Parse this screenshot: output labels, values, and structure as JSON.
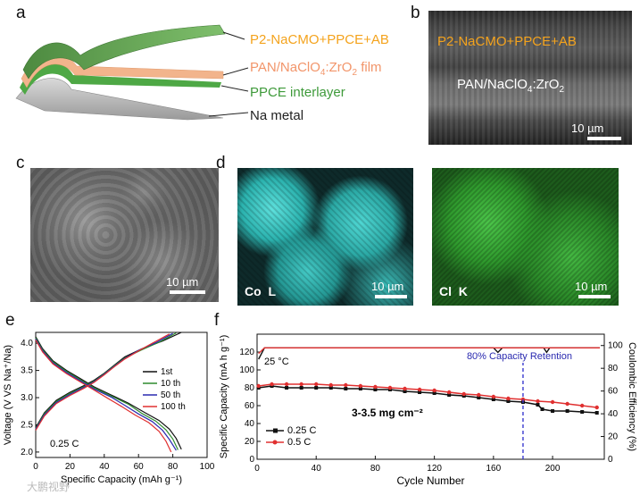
{
  "panels": {
    "a": {
      "label": "a",
      "layers": [
        "P2-NaCMO+PPCE+AB",
        "PAN/NaClO4:ZrO2 film",
        "PPCE interlayer",
        "Na metal"
      ]
    },
    "b": {
      "label": "b",
      "top_text": "P2-NaCMO+PPCE+AB",
      "mid_text": "PAN/NaClO4:ZrO2",
      "scale": "10 µm"
    },
    "c": {
      "label": "c",
      "scale": "10 µm"
    },
    "d": {
      "label": "d",
      "co_label": "Co  L",
      "cl_label": "Cl  K",
      "scale_co": "10 µm",
      "scale_cl": "10 µm"
    },
    "e": {
      "label": "e"
    },
    "f": {
      "label": "f"
    }
  },
  "watermark": "大鹏视野",
  "colors": {
    "cathode_green": "#5a9a4a",
    "film_peach": "#f2b48c",
    "interlayer_green": "#49a640",
    "sodium_gray": "#b5b5b5",
    "co_map": "#3ec8c4",
    "cl_map": "#3aa640",
    "label_orange": "#f4a31d"
  },
  "chart_data": [
    {
      "type": "line",
      "panel": "e",
      "xlabel": "Specific Capacity (mAh g⁻¹)",
      "ylabel": "Voltage (V VS Na⁺/Na)",
      "xlim": [
        0,
        100
      ],
      "ylim": [
        1.9,
        4.2
      ],
      "xticks": [
        0,
        20,
        40,
        60,
        80,
        100
      ],
      "yticks": [
        2.0,
        2.5,
        3.0,
        3.5,
        4.0
      ],
      "annotation": "0.25 C",
      "legend_position": "right",
      "series": [
        {
          "name": "1st",
          "color": "#111111",
          "charge": [
            [
              0,
              2.45
            ],
            [
              5,
              2.72
            ],
            [
              12,
              2.95
            ],
            [
              20,
              3.1
            ],
            [
              28,
              3.22
            ],
            [
              34,
              3.32
            ],
            [
              40,
              3.45
            ],
            [
              46,
              3.6
            ],
            [
              52,
              3.75
            ],
            [
              62,
              3.9
            ],
            [
              74,
              4.04
            ],
            [
              85,
              4.2
            ]
          ],
          "discharge": [
            [
              0,
              4.12
            ],
            [
              4,
              3.9
            ],
            [
              10,
              3.68
            ],
            [
              18,
              3.5
            ],
            [
              26,
              3.35
            ],
            [
              34,
              3.2
            ],
            [
              44,
              3.05
            ],
            [
              54,
              2.9
            ],
            [
              64,
              2.72
            ],
            [
              72,
              2.58
            ],
            [
              78,
              2.42
            ],
            [
              82,
              2.25
            ],
            [
              85,
              2.05
            ]
          ]
        },
        {
          "name": "10 th",
          "color": "#2e8b2e",
          "charge": [
            [
              0,
              2.43
            ],
            [
              5,
              2.7
            ],
            [
              12,
              2.93
            ],
            [
              20,
              3.08
            ],
            [
              28,
              3.2
            ],
            [
              34,
              3.3
            ],
            [
              40,
              3.44
            ],
            [
              46,
              3.59
            ],
            [
              52,
              3.73
            ],
            [
              62,
              3.88
            ],
            [
              72,
              4.02
            ],
            [
              82,
              4.19
            ]
          ],
          "discharge": [
            [
              0,
              4.1
            ],
            [
              4,
              3.88
            ],
            [
              10,
              3.66
            ],
            [
              18,
              3.48
            ],
            [
              26,
              3.33
            ],
            [
              34,
              3.18
            ],
            [
              44,
              3.03
            ],
            [
              54,
              2.88
            ],
            [
              62,
              2.71
            ],
            [
              70,
              2.57
            ],
            [
              76,
              2.41
            ],
            [
              80,
              2.24
            ],
            [
              83,
              2.04
            ]
          ]
        },
        {
          "name": "50 th",
          "color": "#2a2ab0",
          "charge": [
            [
              0,
              2.42
            ],
            [
              5,
              2.68
            ],
            [
              12,
              2.91
            ],
            [
              20,
              3.06
            ],
            [
              28,
              3.19
            ],
            [
              34,
              3.29
            ],
            [
              40,
              3.43
            ],
            [
              46,
              3.58
            ],
            [
              52,
              3.72
            ],
            [
              60,
              3.87
            ],
            [
              70,
              4.01
            ],
            [
              80,
              4.18
            ]
          ],
          "discharge": [
            [
              0,
              4.08
            ],
            [
              4,
              3.86
            ],
            [
              10,
              3.64
            ],
            [
              18,
              3.46
            ],
            [
              26,
              3.31
            ],
            [
              34,
              3.16
            ],
            [
              44,
              3.01
            ],
            [
              52,
              2.86
            ],
            [
              60,
              2.7
            ],
            [
              68,
              2.56
            ],
            [
              74,
              2.4
            ],
            [
              78,
              2.23
            ],
            [
              82,
              2.03
            ]
          ]
        },
        {
          "name": "100 th",
          "color": "#e03030",
          "charge": [
            [
              0,
              2.4
            ],
            [
              5,
              2.66
            ],
            [
              12,
              2.89
            ],
            [
              20,
              3.04
            ],
            [
              28,
              3.17
            ],
            [
              34,
              3.28
            ],
            [
              40,
              3.42
            ],
            [
              46,
              3.57
            ],
            [
              52,
              3.71
            ],
            [
              60,
              3.86
            ],
            [
              68,
              4.0
            ],
            [
              78,
              4.17
            ]
          ],
          "discharge": [
            [
              0,
              4.06
            ],
            [
              4,
              3.84
            ],
            [
              10,
              3.62
            ],
            [
              18,
              3.44
            ],
            [
              26,
              3.29
            ],
            [
              34,
              3.14
            ],
            [
              42,
              2.99
            ],
            [
              50,
              2.84
            ],
            [
              58,
              2.68
            ],
            [
              66,
              2.54
            ],
            [
              72,
              2.38
            ],
            [
              76,
              2.2
            ],
            [
              79,
              2.0
            ]
          ]
        }
      ]
    },
    {
      "type": "scatter",
      "panel": "f",
      "xlabel": "Cycle Number",
      "ylabel": "Specific Capacity (mA h g⁻¹)",
      "y2label": "Coulombic Efficiency (%)",
      "xlim": [
        0,
        235
      ],
      "ylim": [
        0,
        140
      ],
      "y2lim": [
        0,
        110
      ],
      "xticks": [
        0,
        40,
        80,
        120,
        160,
        200
      ],
      "yticks": [
        0,
        20,
        40,
        60,
        80,
        100,
        120
      ],
      "y2ticks": [
        0,
        20,
        40,
        60,
        80,
        100
      ],
      "annotations": [
        "25 °C",
        "80%  Capacity Retention",
        "3-3.5 mg cm⁻²"
      ],
      "retention_cycle": 180,
      "legend_position": "bottom-left",
      "series": [
        {
          "name": "0.25 C",
          "color": "#111111",
          "marker": "square",
          "axis": "left",
          "points": [
            [
              1,
              80
            ],
            [
              10,
              82
            ],
            [
              20,
              80
            ],
            [
              30,
              80
            ],
            [
              40,
              80
            ],
            [
              50,
              80
            ],
            [
              60,
              79
            ],
            [
              70,
              79
            ],
            [
              80,
              78
            ],
            [
              90,
              78
            ],
            [
              100,
              76
            ],
            [
              110,
              75
            ],
            [
              120,
              74
            ],
            [
              130,
              72
            ],
            [
              140,
              71
            ],
            [
              150,
              69
            ],
            [
              160,
              67
            ],
            [
              170,
              65
            ],
            [
              180,
              64
            ],
            [
              190,
              61
            ],
            [
              193,
              56
            ],
            [
              200,
              54
            ],
            [
              210,
              54
            ],
            [
              220,
              53
            ],
            [
              230,
              52
            ]
          ]
        },
        {
          "name": "0.5 C",
          "color": "#e03030",
          "marker": "circle",
          "axis": "left",
          "points": [
            [
              1,
              82
            ],
            [
              10,
              84
            ],
            [
              20,
              84
            ],
            [
              30,
              84
            ],
            [
              40,
              84
            ],
            [
              50,
              83
            ],
            [
              60,
              83
            ],
            [
              70,
              82
            ],
            [
              80,
              81
            ],
            [
              90,
              80
            ],
            [
              100,
              79
            ],
            [
              110,
              78
            ],
            [
              120,
              77
            ],
            [
              130,
              75
            ],
            [
              140,
              73
            ],
            [
              150,
              72
            ],
            [
              160,
              70
            ],
            [
              170,
              68
            ],
            [
              180,
              67
            ],
            [
              190,
              65
            ],
            [
              200,
              64
            ],
            [
              210,
              62
            ],
            [
              220,
              60
            ],
            [
              230,
              58
            ]
          ]
        },
        {
          "name": "CE 0.25 C",
          "color": "#111111",
          "axis": "right",
          "points": [
            [
              1,
              88
            ],
            [
              5,
              98
            ],
            [
              20,
              98
            ],
            [
              40,
              98
            ],
            [
              60,
              98
            ],
            [
              80,
              98
            ],
            [
              100,
              98
            ],
            [
              120,
              98
            ],
            [
              140,
              98
            ],
            [
              160,
              98
            ],
            [
              163,
              94
            ],
            [
              166,
              98
            ],
            [
              180,
              98
            ],
            [
              194,
              98
            ],
            [
              196,
              94
            ],
            [
              198,
              98
            ],
            [
              220,
              98
            ],
            [
              232,
              98
            ]
          ]
        },
        {
          "name": "CE 0.5 C",
          "color": "#e03030",
          "axis": "right",
          "points": [
            [
              1,
              93
            ],
            [
              5,
              98
            ],
            [
              20,
              98
            ],
            [
              40,
              98
            ],
            [
              60,
              98
            ],
            [
              80,
              98
            ],
            [
              100,
              98
            ],
            [
              120,
              98
            ],
            [
              140,
              98
            ],
            [
              160,
              98
            ],
            [
              180,
              98
            ],
            [
              200,
              98
            ],
            [
              220,
              98
            ],
            [
              232,
              98
            ]
          ]
        }
      ]
    }
  ]
}
